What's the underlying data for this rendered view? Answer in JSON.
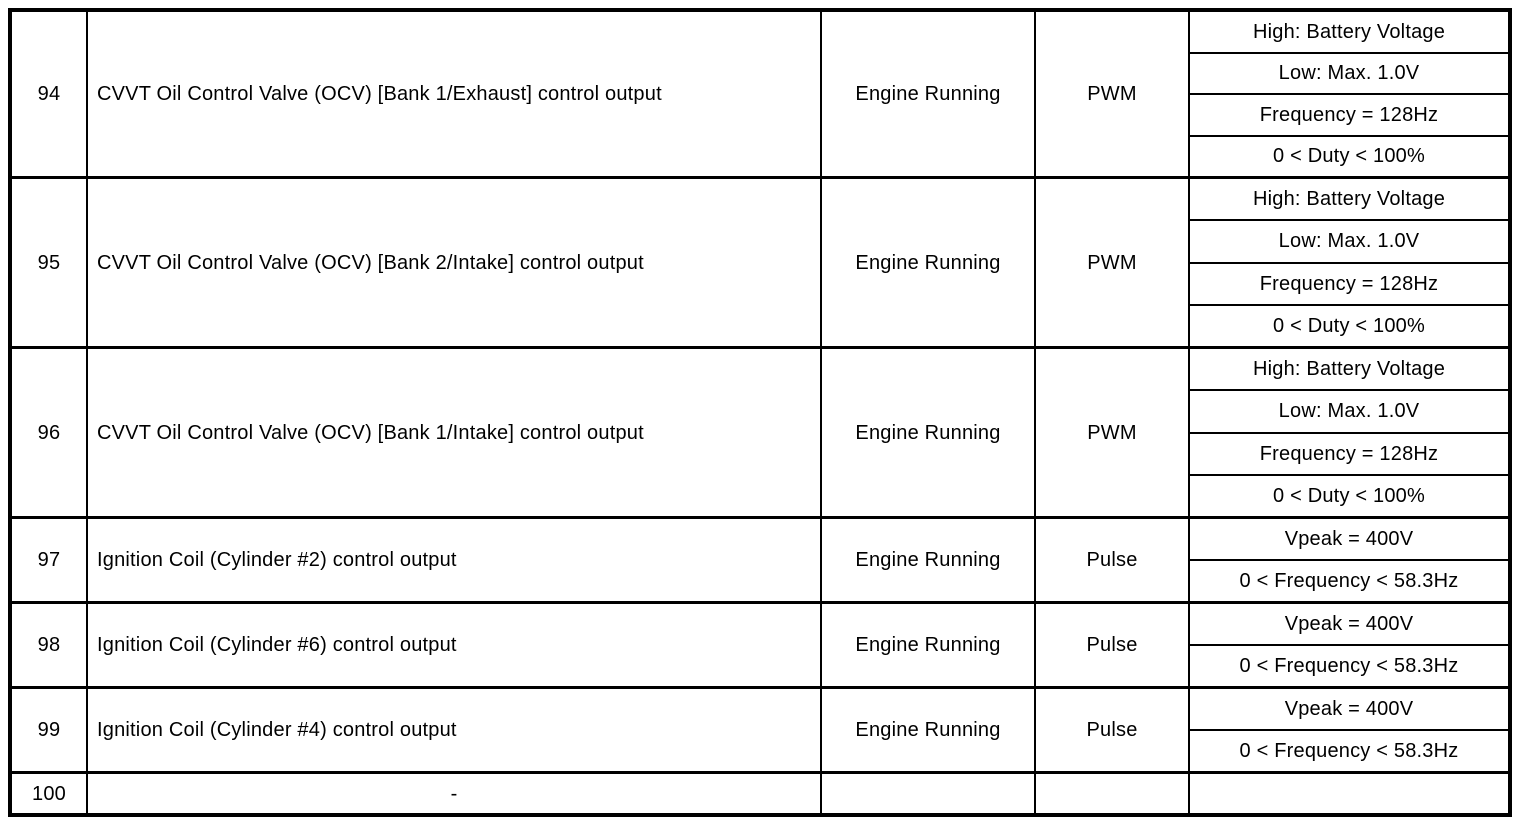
{
  "table": {
    "rows": [
      {
        "pin": "94",
        "description": "CVVT Oil Control Valve (OCV) [Bank 1/Exhaust] control output",
        "condition": "Engine Running",
        "type": "PWM",
        "specs": [
          "High: Battery Voltage",
          "Low: Max. 1.0V",
          "Frequency = 128Hz",
          "0 < Duty < 100%"
        ]
      },
      {
        "pin": "95",
        "description": "CVVT Oil Control Valve (OCV) [Bank 2/Intake] control output",
        "condition": "Engine Running",
        "type": "PWM",
        "specs": [
          "High: Battery Voltage",
          "Low: Max. 1.0V",
          "Frequency = 128Hz",
          "0 < Duty < 100%"
        ]
      },
      {
        "pin": "96",
        "description": "CVVT Oil Control Valve (OCV) [Bank 1/Intake] control output",
        "condition": "Engine Running",
        "type": "PWM",
        "specs": [
          "High: Battery Voltage",
          "Low: Max. 1.0V",
          "Frequency = 128Hz",
          "0 < Duty < 100%"
        ]
      },
      {
        "pin": "97",
        "description": "Ignition Coil (Cylinder #2) control output",
        "condition": "Engine Running",
        "type": "Pulse",
        "specs": [
          "Vpeak = 400V",
          "0 < Frequency < 58.3Hz"
        ]
      },
      {
        "pin": "98",
        "description": "Ignition Coil (Cylinder #6) control output",
        "condition": "Engine Running",
        "type": "Pulse",
        "specs": [
          "Vpeak = 400V",
          "0 < Frequency < 58.3Hz"
        ]
      },
      {
        "pin": "99",
        "description": "Ignition Coil (Cylinder #4) control output",
        "condition": "Engine Running",
        "type": "Pulse",
        "specs": [
          "Vpeak = 400V",
          "0 < Frequency < 58.3Hz"
        ]
      },
      {
        "pin": "100",
        "description": "-",
        "condition": "",
        "type": "",
        "specs": []
      }
    ]
  }
}
